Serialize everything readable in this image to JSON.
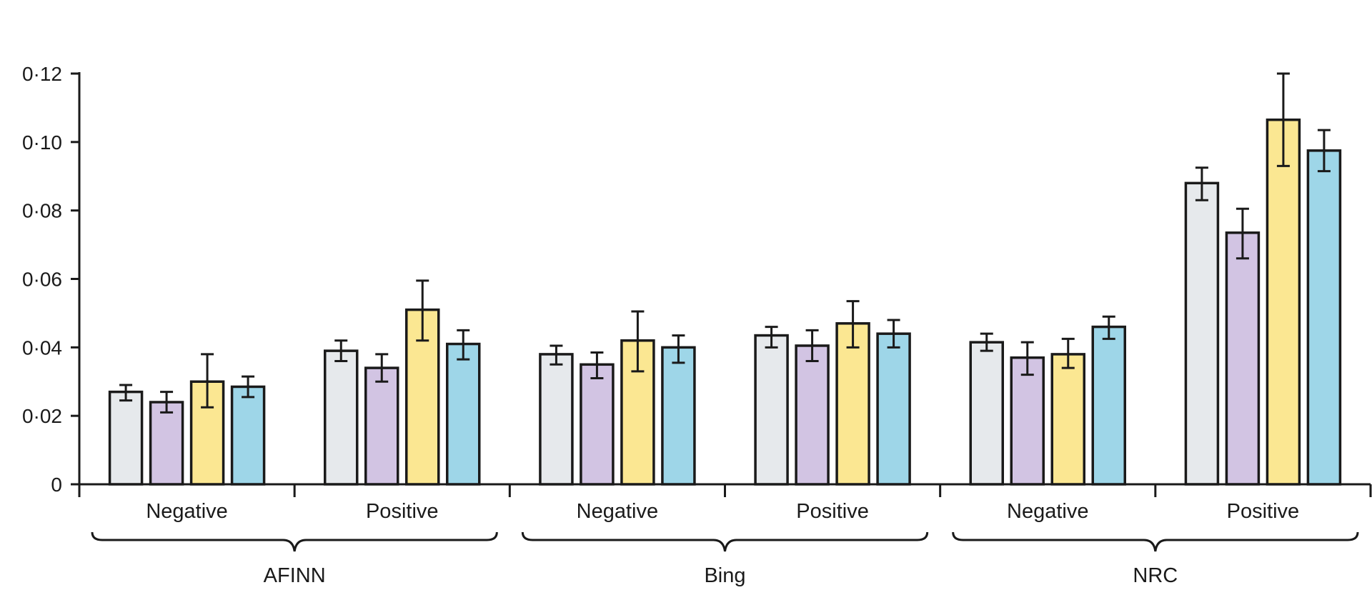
{
  "chart_data": {
    "type": "bar",
    "title": "",
    "xlabel": "",
    "ylabel": "",
    "ylim": [
      0,
      0.12
    ],
    "y_ticks": [
      0,
      0.02,
      0.04,
      0.06,
      0.08,
      0.1,
      0.12
    ],
    "y_tick_labels": [
      "0",
      "0·02",
      "0·04",
      "0·06",
      "0·08",
      "0·10",
      "0·12"
    ],
    "groups": [
      {
        "label": "AFINN",
        "categories": [
          "Negative",
          "Positive"
        ]
      },
      {
        "label": "Bing",
        "categories": [
          "Negative",
          "Positive"
        ]
      },
      {
        "label": "NRC",
        "categories": [
          "Negative",
          "Positive"
        ]
      }
    ],
    "categories": [
      "Negative",
      "Positive",
      "Negative",
      "Positive",
      "Negative",
      "Positive"
    ],
    "series": [
      {
        "color": "#e6e9ec",
        "values": [
          0.027,
          0.039,
          0.038,
          0.0435,
          0.0415,
          0.088
        ],
        "error_low": [
          0.0245,
          0.036,
          0.035,
          0.04,
          0.039,
          0.083
        ],
        "error_high": [
          0.029,
          0.042,
          0.0405,
          0.046,
          0.044,
          0.0925
        ]
      },
      {
        "color": "#d2c4e3",
        "values": [
          0.024,
          0.034,
          0.035,
          0.0405,
          0.037,
          0.0735
        ],
        "error_low": [
          0.021,
          0.03,
          0.031,
          0.036,
          0.032,
          0.066
        ],
        "error_high": [
          0.027,
          0.038,
          0.0385,
          0.045,
          0.0415,
          0.0805
        ]
      },
      {
        "color": "#fbe792",
        "values": [
          0.03,
          0.051,
          0.042,
          0.047,
          0.038,
          0.1065
        ],
        "error_low": [
          0.0225,
          0.042,
          0.033,
          0.04,
          0.034,
          0.093
        ],
        "error_high": [
          0.038,
          0.0595,
          0.0505,
          0.0535,
          0.0425,
          0.12
        ]
      },
      {
        "color": "#9ed6e8",
        "values": [
          0.0285,
          0.041,
          0.04,
          0.044,
          0.046,
          0.0975
        ],
        "error_low": [
          0.0255,
          0.0365,
          0.0355,
          0.04,
          0.0425,
          0.0915
        ],
        "error_high": [
          0.0315,
          0.045,
          0.0435,
          0.048,
          0.049,
          0.1035
        ]
      }
    ],
    "grid": false,
    "legend": "none"
  }
}
